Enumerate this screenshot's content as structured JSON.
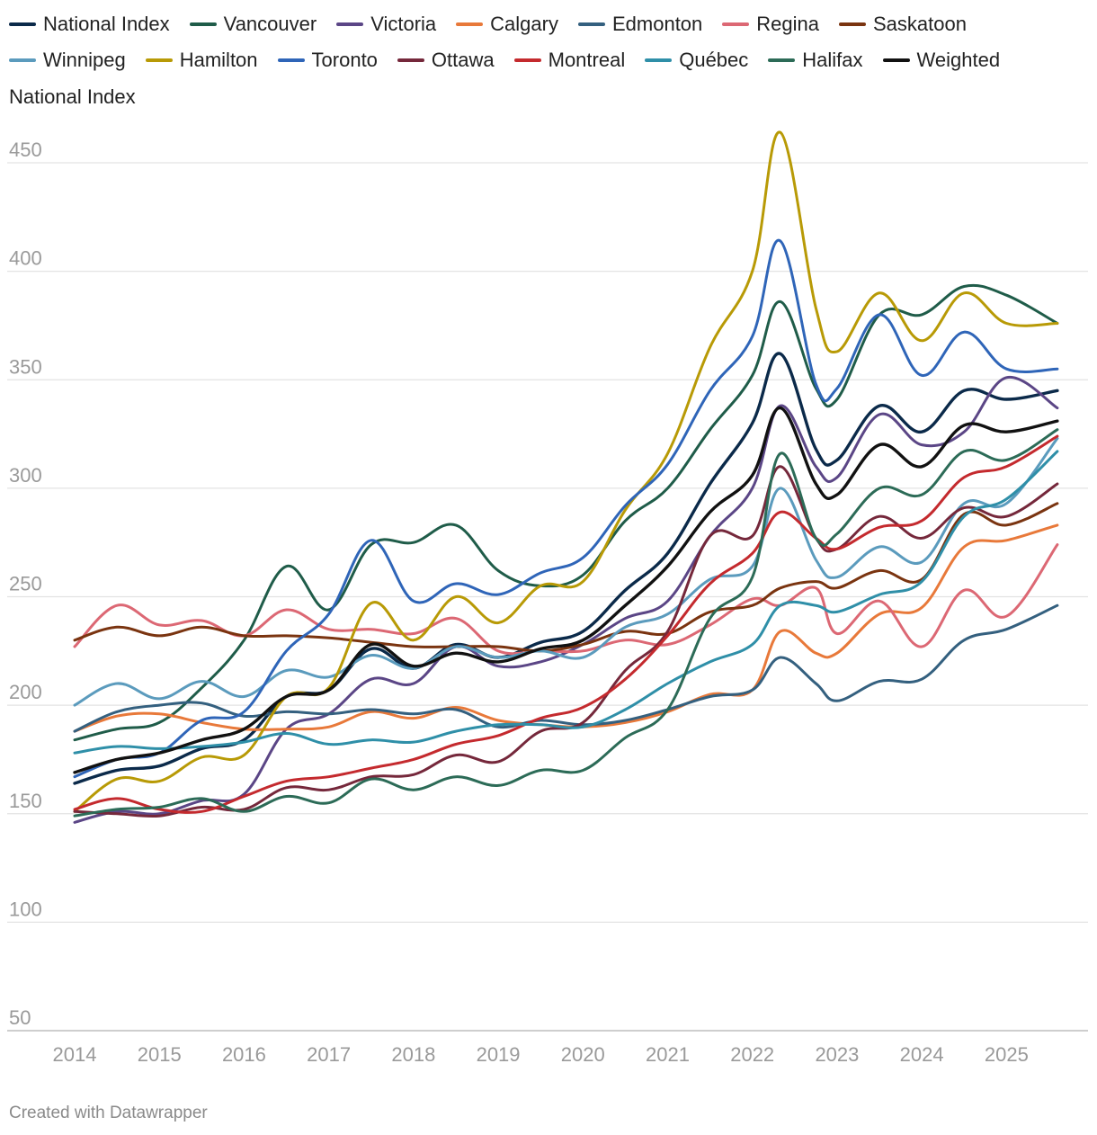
{
  "chart_data": {
    "type": "line",
    "title": "National Index",
    "xlabel": "",
    "ylabel": "",
    "ylim": [
      50,
      460
    ],
    "xlim": [
      2014,
      2025.75
    ],
    "yticks": [
      50,
      100,
      150,
      200,
      250,
      300,
      350,
      400,
      450
    ],
    "xticks": [
      "2014",
      "2015",
      "2016",
      "2017",
      "2018",
      "2019",
      "2020",
      "2021",
      "2022",
      "2023",
      "2024",
      "2025"
    ],
    "x": [
      2014,
      2014.5,
      2015,
      2015.5,
      2016,
      2016.5,
      2017,
      2017.5,
      2018,
      2018.5,
      2019,
      2019.5,
      2020,
      2020.5,
      2021,
      2021.5,
      2022,
      2022.33,
      2022.75,
      2023,
      2023.5,
      2024,
      2024.5,
      2025,
      2025.6
    ],
    "series": [
      {
        "name": "National Index",
        "color": "#0b2a4a",
        "values": [
          164,
          170,
          172,
          180,
          184,
          204,
          207,
          226,
          217,
          228,
          222,
          229,
          234,
          253,
          270,
          302,
          330,
          362,
          318,
          313,
          338,
          326,
          345,
          341,
          345
        ]
      },
      {
        "name": "Vancouver",
        "color": "#1f5c49",
        "values": [
          184,
          189,
          192,
          208,
          230,
          264,
          244,
          274,
          275,
          283,
          262,
          255,
          260,
          285,
          300,
          327,
          352,
          386,
          346,
          341,
          380,
          380,
          393,
          389,
          376
        ]
      },
      {
        "name": "Victoria",
        "color": "#5b4686",
        "values": [
          146,
          151,
          150,
          156,
          159,
          189,
          196,
          212,
          210,
          227,
          218,
          220,
          228,
          240,
          248,
          278,
          300,
          338,
          310,
          305,
          334,
          320,
          326,
          351,
          337
        ]
      },
      {
        "name": "Calgary",
        "color": "#e8793a",
        "values": [
          188,
          195,
          196,
          192,
          189,
          189,
          190,
          197,
          194,
          199,
          193,
          191,
          190,
          192,
          197,
          205,
          207,
          234,
          224,
          224,
          242,
          245,
          273,
          276,
          283
        ]
      },
      {
        "name": "Edmonton",
        "color": "#34607f",
        "values": [
          188,
          197,
          200,
          201,
          195,
          197,
          196,
          198,
          196,
          198,
          190,
          193,
          191,
          193,
          198,
          204,
          207,
          222,
          210,
          202,
          211,
          212,
          230,
          235,
          246
        ]
      },
      {
        "name": "Regina",
        "color": "#dc6874",
        "values": [
          227,
          246,
          237,
          239,
          232,
          244,
          235,
          235,
          233,
          240,
          225,
          225,
          225,
          230,
          228,
          237,
          249,
          246,
          254,
          233,
          248,
          227,
          253,
          241,
          274
        ]
      },
      {
        "name": "Saskatoon",
        "color": "#7a3410",
        "values": [
          230,
          236,
          232,
          236,
          232,
          232,
          231,
          229,
          227,
          227,
          227,
          225,
          228,
          234,
          233,
          243,
          246,
          254,
          257,
          254,
          262,
          258,
          288,
          283,
          293
        ]
      },
      {
        "name": "Winnipeg",
        "color": "#5b9bbd",
        "values": [
          200,
          210,
          203,
          211,
          204,
          216,
          213,
          223,
          217,
          227,
          222,
          225,
          222,
          236,
          242,
          258,
          264,
          300,
          267,
          259,
          273,
          266,
          293,
          293,
          323
        ]
      },
      {
        "name": "Hamilton",
        "color": "#b89a06",
        "values": [
          151,
          166,
          165,
          176,
          177,
          204,
          208,
          247,
          230,
          250,
          238,
          255,
          257,
          290,
          316,
          365,
          400,
          464,
          383,
          363,
          390,
          368,
          390,
          376,
          376
        ]
      },
      {
        "name": "Toronto",
        "color": "#2f65b8",
        "values": [
          167,
          175,
          178,
          193,
          197,
          225,
          242,
          276,
          248,
          256,
          251,
          261,
          268,
          292,
          311,
          345,
          370,
          414,
          348,
          346,
          380,
          352,
          372,
          355,
          355
        ]
      },
      {
        "name": "Ottawa",
        "color": "#75283b",
        "values": [
          151,
          150,
          149,
          153,
          152,
          162,
          161,
          167,
          168,
          177,
          174,
          188,
          192,
          216,
          234,
          278,
          278,
          310,
          277,
          272,
          287,
          277,
          291,
          287,
          302
        ]
      },
      {
        "name": "Montreal",
        "color": "#c42a2e",
        "values": [
          152,
          157,
          152,
          151,
          158,
          165,
          167,
          171,
          175,
          182,
          186,
          194,
          199,
          212,
          232,
          256,
          270,
          289,
          277,
          272,
          282,
          285,
          305,
          310,
          324
        ]
      },
      {
        "name": "Québec",
        "color": "#2f8fa8",
        "values": [
          178,
          181,
          180,
          181,
          183,
          187,
          182,
          184,
          183,
          188,
          191,
          191,
          190,
          198,
          210,
          220,
          228,
          246,
          246,
          243,
          251,
          257,
          287,
          295,
          317
        ]
      },
      {
        "name": "Halifax",
        "color": "#2c6b57",
        "values": [
          149,
          152,
          153,
          157,
          151,
          158,
          155,
          166,
          161,
          167,
          163,
          170,
          170,
          185,
          198,
          240,
          259,
          316,
          277,
          279,
          300,
          297,
          317,
          313,
          327
        ]
      },
      {
        "name": "Weighted",
        "color": "#111111",
        "values": [
          169,
          175,
          178,
          184,
          189,
          204,
          207,
          228,
          218,
          224,
          220,
          226,
          230,
          246,
          264,
          289,
          306,
          337,
          302,
          297,
          320,
          310,
          329,
          326,
          331
        ]
      }
    ],
    "legend_position": "top",
    "grid": true,
    "footer": "Created with Datawrapper"
  }
}
